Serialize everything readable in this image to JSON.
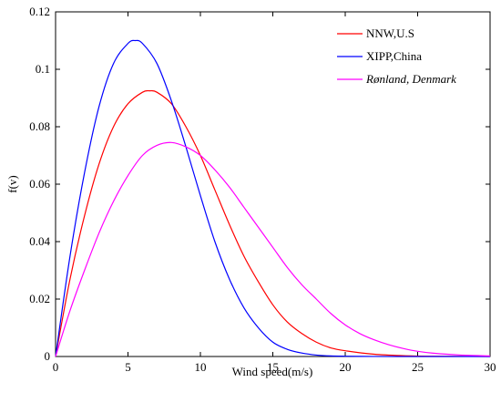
{
  "chart_data": {
    "type": "line",
    "xlabel": "Wind speed(m/s)",
    "ylabel": "f(v)",
    "xlim": [
      0,
      30
    ],
    "ylim": [
      0,
      0.12
    ],
    "xticks": [
      "0",
      "5",
      "10",
      "15",
      "20",
      "25",
      "30"
    ],
    "yticks": [
      "0",
      "0.02",
      "0.04",
      "0.06",
      "0.08",
      "0.1",
      "0.12"
    ],
    "grid": false,
    "legend_position": "top-right",
    "series": [
      {
        "name": "NNW,U.S",
        "color": "#ff0000",
        "x": [
          0,
          1,
          2,
          3,
          4,
          5,
          6,
          6.5,
          7,
          8,
          9,
          10,
          11,
          12,
          13,
          14,
          15,
          16,
          17,
          18,
          19,
          20,
          22,
          24,
          26,
          28,
          30
        ],
        "y": [
          0,
          0.027,
          0.049,
          0.067,
          0.08,
          0.088,
          0.092,
          0.0925,
          0.092,
          0.088,
          0.08,
          0.07,
          0.058,
          0.046,
          0.035,
          0.026,
          0.018,
          0.012,
          0.008,
          0.005,
          0.003,
          0.002,
          0.0008,
          0.0003,
          0.0001,
          4e-05,
          1e-05
        ]
      },
      {
        "name": "XIPP,China",
        "color": "#0000ff",
        "x": [
          0,
          1,
          2,
          3,
          4,
          5,
          5.5,
          6,
          7,
          8,
          9,
          10,
          11,
          12,
          13,
          14,
          15,
          16,
          17,
          18,
          19,
          20,
          22,
          24,
          26,
          28,
          30
        ],
        "y": [
          0,
          0.035,
          0.064,
          0.087,
          0.102,
          0.109,
          0.11,
          0.109,
          0.102,
          0.089,
          0.073,
          0.056,
          0.04,
          0.027,
          0.017,
          0.01,
          0.005,
          0.0025,
          0.0012,
          0.0005,
          0.0002,
          0.0001,
          2e-05,
          0,
          0,
          0,
          0
        ]
      },
      {
        "name": "Rønland, Denmark",
        "color": "#ff00ff",
        "x": [
          0,
          1,
          2,
          3,
          4,
          5,
          6,
          7,
          8,
          9,
          10,
          11,
          12,
          13,
          14,
          15,
          16,
          17,
          18,
          19,
          20,
          21,
          22,
          23,
          24,
          25,
          26,
          28,
          30
        ],
        "y": [
          0,
          0.016,
          0.03,
          0.043,
          0.054,
          0.063,
          0.07,
          0.0735,
          0.0745,
          0.073,
          0.07,
          0.065,
          0.059,
          0.052,
          0.045,
          0.038,
          0.031,
          0.025,
          0.02,
          0.015,
          0.011,
          0.008,
          0.0058,
          0.0041,
          0.0028,
          0.0018,
          0.0012,
          0.0005,
          0.0002
        ]
      }
    ]
  }
}
